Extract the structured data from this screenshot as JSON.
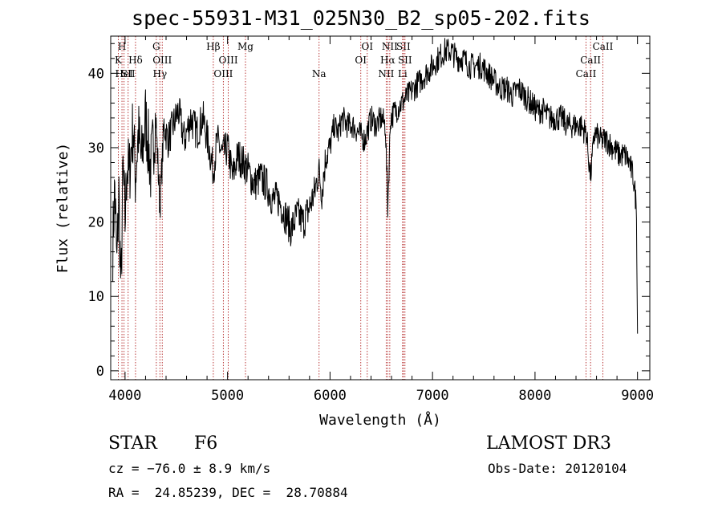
{
  "header": {
    "title": "spec-55931-M31_025N30_B2_sp05-202.fits"
  },
  "footer": {
    "class_label": "STAR",
    "subclass": "F6",
    "survey": "LAMOST DR3",
    "cz": "cz = −76.0 ± 8.9 km/s",
    "obs_date": "Obs-Date: 20120104",
    "coords": "RA =  24.85239, DEC =  28.70884"
  },
  "colors": {
    "spectrum": "#000000",
    "line_marker": "#b22222",
    "axis": "#000000"
  },
  "chart_data": {
    "type": "line",
    "title": "spec-55931-M31_025N30_B2_sp05-202.fits",
    "xlabel": "Wavelength (Å)",
    "ylabel": "Flux (relative)",
    "xlim": [
      3860,
      9120
    ],
    "ylim": [
      -1.2,
      45
    ],
    "x_ticks": [
      4000,
      5000,
      6000,
      7000,
      8000,
      9000
    ],
    "y_ticks": [
      0,
      10,
      20,
      30,
      40
    ],
    "series": [
      {
        "name": "spectrum",
        "x": [
          3880,
          3900,
          3920,
          3940,
          3960,
          3980,
          4000,
          4020,
          4040,
          4060,
          4080,
          4100,
          4130,
          4160,
          4200,
          4250,
          4300,
          4340,
          4380,
          4420,
          4470,
          4520,
          4580,
          4640,
          4700,
          4760,
          4820,
          4860,
          4900,
          4950,
          5000,
          5050,
          5100,
          5150,
          5200,
          5260,
          5320,
          5380,
          5440,
          5500,
          5560,
          5620,
          5680,
          5740,
          5800,
          5850,
          5890,
          5920,
          5960,
          6000,
          6040,
          6080,
          6120,
          6170,
          6220,
          6280,
          6340,
          6400,
          6450,
          6500,
          6540,
          6563,
          6590,
          6640,
          6700,
          6760,
          6820,
          6880,
          6940,
          7000,
          7060,
          7120,
          7180,
          7240,
          7300,
          7360,
          7420,
          7480,
          7540,
          7600,
          7660,
          7720,
          7780,
          7840,
          7900,
          7960,
          8020,
          8080,
          8140,
          8200,
          8260,
          8320,
          8380,
          8440,
          8500,
          8542,
          8580,
          8640,
          8700,
          8760,
          8820,
          8880,
          8920,
          8960,
          8990,
          9000
        ],
        "y": [
          17,
          25,
          14,
          24,
          10,
          27,
          20,
          28,
          26,
          30,
          33,
          26,
          32,
          28,
          34,
          27,
          34,
          22,
          33,
          31,
          33,
          35,
          31,
          34,
          32,
          34,
          30,
          27,
          31,
          29,
          30,
          26,
          29,
          28,
          27,
          25,
          26,
          25,
          23,
          23,
          21,
          19,
          21,
          20,
          22,
          24,
          27,
          24,
          29,
          30,
          33,
          32,
          34,
          33,
          33,
          32,
          31,
          34,
          33,
          34,
          33,
          22,
          34,
          35,
          36,
          37,
          38,
          39,
          40,
          41,
          42,
          43,
          43,
          42,
          42,
          41,
          41,
          41,
          40,
          39,
          38,
          38,
          37,
          38,
          37,
          36,
          35,
          35,
          34,
          34,
          34,
          33,
          33,
          33,
          32,
          26,
          32,
          31,
          31,
          30,
          29,
          29,
          28,
          26,
          22,
          5
        ]
      }
    ],
    "line_markers": [
      {
        "x": 3934,
        "label": "K",
        "row": 2
      },
      {
        "x": 3970,
        "label": "H",
        "row": 1
      },
      {
        "x": 3990,
        "label": "HeI",
        "row": 3
      },
      {
        "x": 4030,
        "label": "SII",
        "row": 3
      },
      {
        "x": 4102,
        "label": "Hδ",
        "row": 2
      },
      {
        "x": 4305,
        "label": "G",
        "row": 1
      },
      {
        "x": 4340,
        "label": "Hγ",
        "row": 3
      },
      {
        "x": 4363,
        "label": "OIII",
        "row": 2
      },
      {
        "x": 4861,
        "label": "Hβ",
        "row": 1
      },
      {
        "x": 4959,
        "label": "OIII",
        "row": 3
      },
      {
        "x": 5007,
        "label": "OIII",
        "row": 2
      },
      {
        "x": 5175,
        "label": "Mg",
        "row": 1
      },
      {
        "x": 5893,
        "label": "Na",
        "row": 3
      },
      {
        "x": 6300,
        "label": "OI",
        "row": 2
      },
      {
        "x": 6363,
        "label": "OI",
        "row": 1
      },
      {
        "x": 6548,
        "label": "NII",
        "row": 3
      },
      {
        "x": 6563,
        "label": "Hα",
        "row": 2
      },
      {
        "x": 6583,
        "label": "NII",
        "row": 1
      },
      {
        "x": 6708,
        "label": "Li",
        "row": 3
      },
      {
        "x": 6716,
        "label": "SII",
        "row": 1
      },
      {
        "x": 6731,
        "label": "SII",
        "row": 2
      },
      {
        "x": 8498,
        "label": "CaII",
        "row": 3
      },
      {
        "x": 8542,
        "label": "CaII",
        "row": 2
      },
      {
        "x": 8662,
        "label": "CaII",
        "row": 1
      }
    ]
  }
}
